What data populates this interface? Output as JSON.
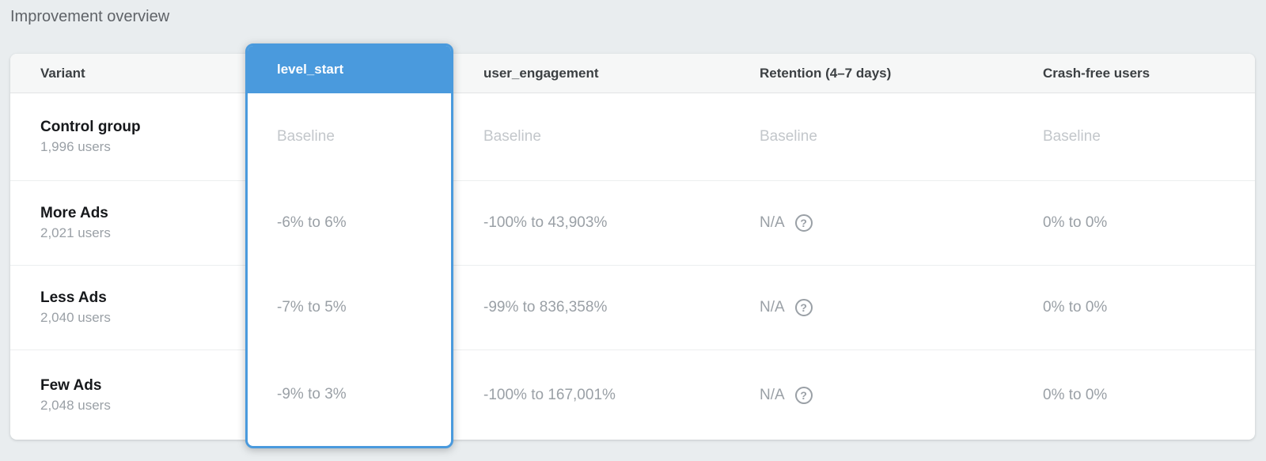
{
  "title": "Improvement overview",
  "colors": {
    "accent": "#4a9add"
  },
  "icons": {
    "help_glyph": "?"
  },
  "table": {
    "headers": {
      "variant": "Variant",
      "level_start": "level_start",
      "user_engagement": "user_engagement",
      "retention": "Retention (4–7 days)",
      "crash_free": "Crash-free users"
    },
    "rows": [
      {
        "variant": "Control group",
        "users": "1,996 users",
        "level_start": {
          "text": "Baseline",
          "baseline": true
        },
        "user_engagement": {
          "text": "Baseline",
          "baseline": true
        },
        "retention": {
          "text": "Baseline",
          "baseline": true,
          "help": false
        },
        "crash_free": {
          "text": "Baseline",
          "baseline": true
        }
      },
      {
        "variant": "More Ads",
        "users": "2,021 users",
        "level_start": {
          "text": "-6% to 6%"
        },
        "user_engagement": {
          "text": "-100% to 43,903%"
        },
        "retention": {
          "text": "N/A",
          "help": true
        },
        "crash_free": {
          "text": "0% to 0%"
        }
      },
      {
        "variant": "Less Ads",
        "users": "2,040 users",
        "level_start": {
          "text": "-7% to 5%"
        },
        "user_engagement": {
          "text": "-99% to 836,358%"
        },
        "retention": {
          "text": "N/A",
          "help": true
        },
        "crash_free": {
          "text": "0% to 0%"
        }
      },
      {
        "variant": "Few Ads",
        "users": "2,048 users",
        "level_start": {
          "text": "-9% to 3%"
        },
        "user_engagement": {
          "text": "-100% to 167,001%"
        },
        "retention": {
          "text": "N/A",
          "help": true
        },
        "crash_free": {
          "text": "0% to 0%"
        }
      }
    ]
  }
}
